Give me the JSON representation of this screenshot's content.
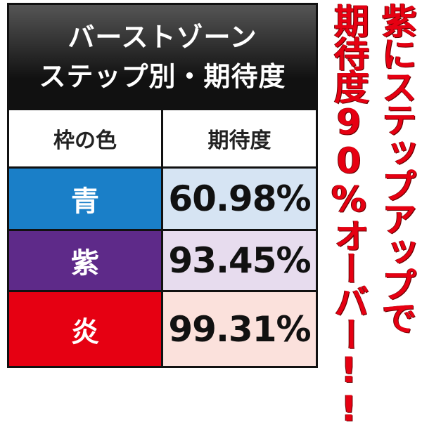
{
  "header": {
    "title_lines": [
      "バーストゾーン",
      "ステップ別・期待度"
    ]
  },
  "table": {
    "columns": [
      "枠の色",
      "期待度"
    ],
    "rows": [
      [
        "青",
        "60.98%"
      ],
      [
        "紫",
        "93.45%"
      ],
      [
        "炎",
        "99.31%"
      ]
    ]
  },
  "side_text": [
    "紫にステップアップで",
    "期待度90%オーバー!!"
  ]
}
